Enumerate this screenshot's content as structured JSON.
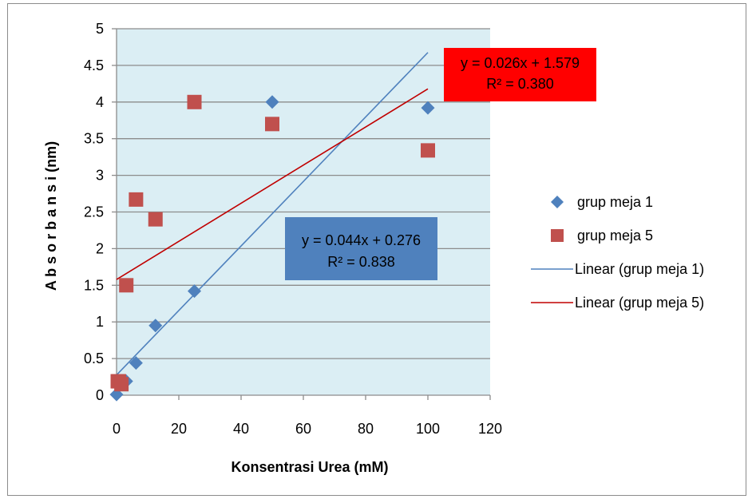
{
  "chart_data": {
    "type": "scatter",
    "xlabel": "Konsentrasi Urea (mM)",
    "ylabel": "A b s o r b a n s i (nm)",
    "xlim": [
      0,
      120
    ],
    "ylim": [
      0,
      5
    ],
    "x_ticks": [
      "0",
      "20",
      "40",
      "60",
      "80",
      "100",
      "120"
    ],
    "y_ticks": [
      "0",
      "0.5",
      "1",
      "1.5",
      "2",
      "2.5",
      "3",
      "3.5",
      "4",
      "4.5",
      "5"
    ],
    "grid": "horizontal",
    "plot_background": "#dbeef4",
    "legend_position": "right",
    "series": [
      {
        "name": "grup meja 1",
        "marker": "diamond",
        "color": "#4f81bd",
        "points": [
          [
            0,
            0.01
          ],
          [
            1.56,
            0.19
          ],
          [
            3.13,
            0.19
          ],
          [
            6.25,
            0.44
          ],
          [
            12.5,
            0.95
          ],
          [
            25,
            1.42
          ],
          [
            50,
            4.0
          ],
          [
            100,
            3.92
          ]
        ]
      },
      {
        "name": "grup meja 5",
        "marker": "square",
        "color": "#c0504d",
        "points": [
          [
            0.39,
            0.19
          ],
          [
            0.78,
            0.19
          ],
          [
            1.56,
            0.15
          ],
          [
            3.13,
            1.5
          ],
          [
            6.25,
            2.67
          ],
          [
            12.5,
            2.4
          ],
          [
            25,
            4.0
          ],
          [
            50,
            3.7
          ],
          [
            100,
            3.34
          ]
        ]
      }
    ],
    "trendlines": [
      {
        "name": "Linear (grup meja 1)",
        "color": "#4f81bd",
        "slope": 0.044,
        "intercept": 0.276,
        "x_range": [
          0,
          100
        ],
        "equation": "y = 0.044x + 0.276",
        "r2": "R² = 0.838",
        "label_background": "#4f81bd",
        "label_text_color": "#000000"
      },
      {
        "name": "Linear (grup meja 5)",
        "color": "#c00000",
        "slope": 0.026,
        "intercept": 1.579,
        "x_range": [
          0,
          100
        ],
        "equation": "y = 0.026x + 1.579",
        "r2": "R² = 0.380",
        "label_background": "#ff0000",
        "label_text_color": "#000000"
      }
    ]
  }
}
